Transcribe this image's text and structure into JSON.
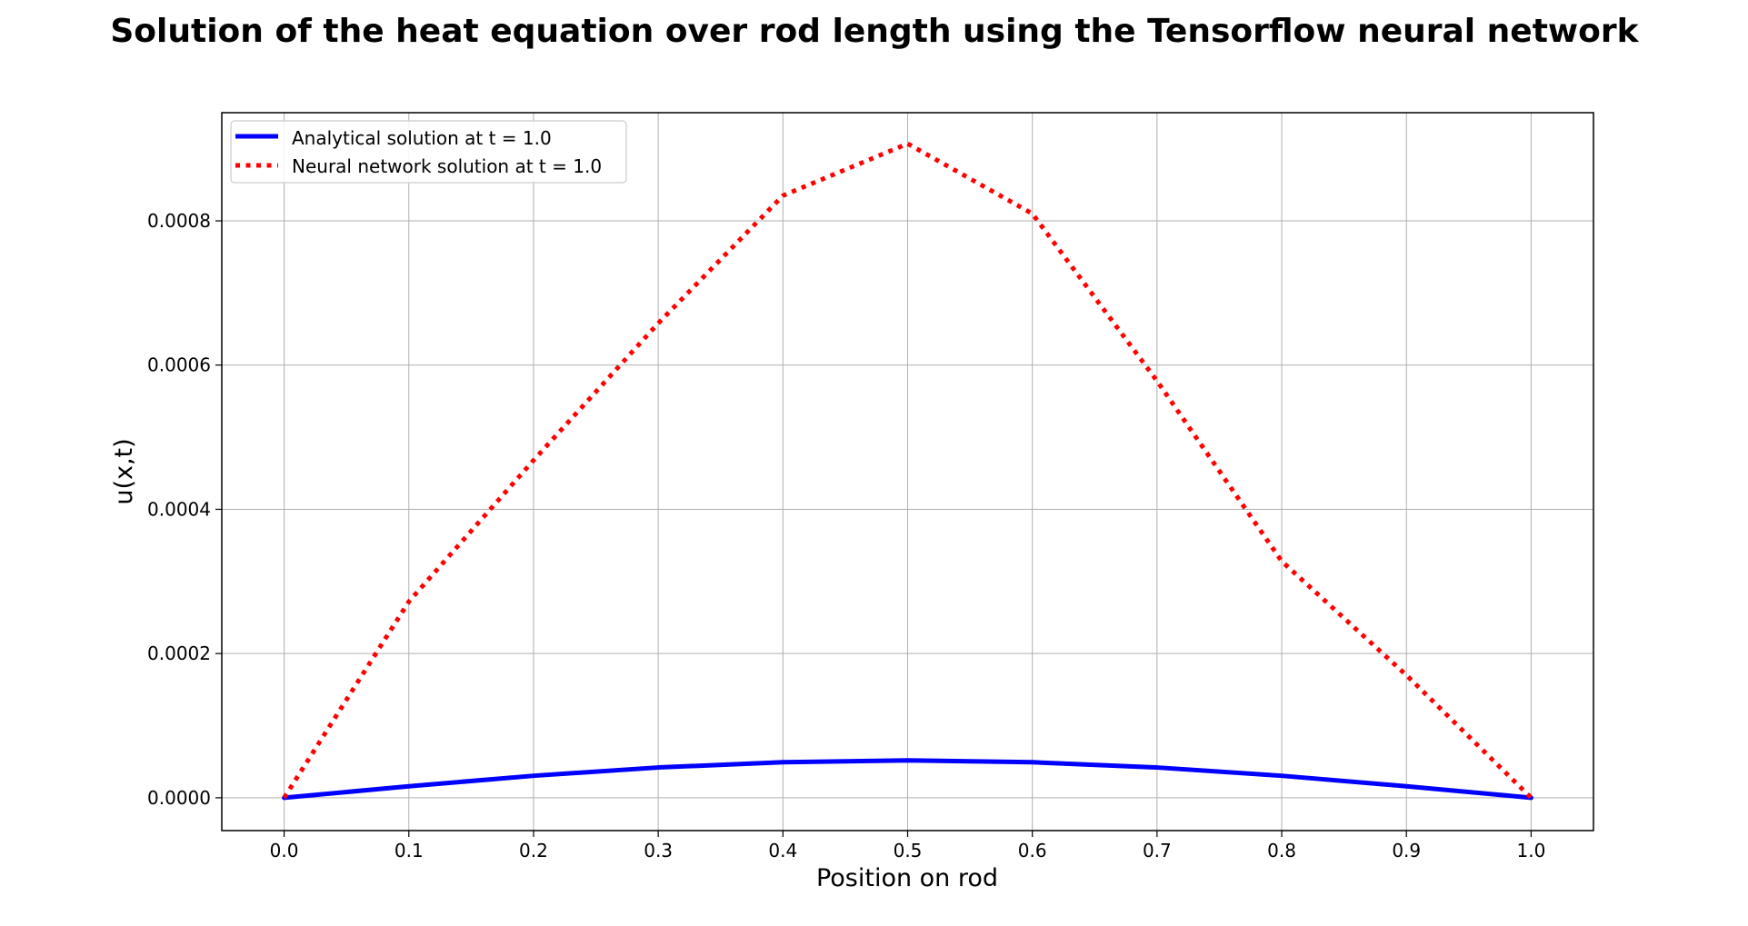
{
  "chart_data": {
    "type": "line",
    "title": "Solution of the heat equation over rod length using the Tensorflow neural network",
    "xlabel": "Position on rod",
    "ylabel": "u(x,t)",
    "xlim": [
      -0.05,
      1.05
    ],
    "ylim": [
      -4.55e-05,
      0.00095
    ],
    "xticks": [
      0.0,
      0.1,
      0.2,
      0.3,
      0.4,
      0.5,
      0.6,
      0.7,
      0.8,
      0.9,
      1.0
    ],
    "xtick_labels": [
      "0.0",
      "0.1",
      "0.2",
      "0.3",
      "0.4",
      "0.5",
      "0.6",
      "0.7",
      "0.8",
      "0.9",
      "1.0"
    ],
    "yticks": [
      0.0,
      0.0002,
      0.0004,
      0.0006,
      0.0008
    ],
    "ytick_labels": [
      "0.0000",
      "0.0002",
      "0.0004",
      "0.0006",
      "0.0008"
    ],
    "grid": true,
    "legend_position": "upper-left",
    "x": [
      0.0,
      0.1,
      0.2,
      0.3,
      0.4,
      0.5,
      0.6,
      0.7,
      0.8,
      0.9,
      1.0
    ],
    "series": [
      {
        "name": "Analytical solution at t = 1.0",
        "color": "#0000ff",
        "style": "solid",
        "values": [
          0.0,
          1.6e-05,
          3.05e-05,
          4.2e-05,
          4.93e-05,
          5.18e-05,
          4.93e-05,
          4.2e-05,
          3.05e-05,
          1.6e-05,
          0.0
        ]
      },
      {
        "name": "Neural network solution at t = 1.0",
        "color": "#ff0000",
        "style": "dotted",
        "values": [
          0.0,
          0.000272,
          0.000468,
          0.000658,
          0.000835,
          0.000907,
          0.00081,
          0.000578,
          0.000328,
          0.00017,
          0.0
        ]
      }
    ]
  }
}
